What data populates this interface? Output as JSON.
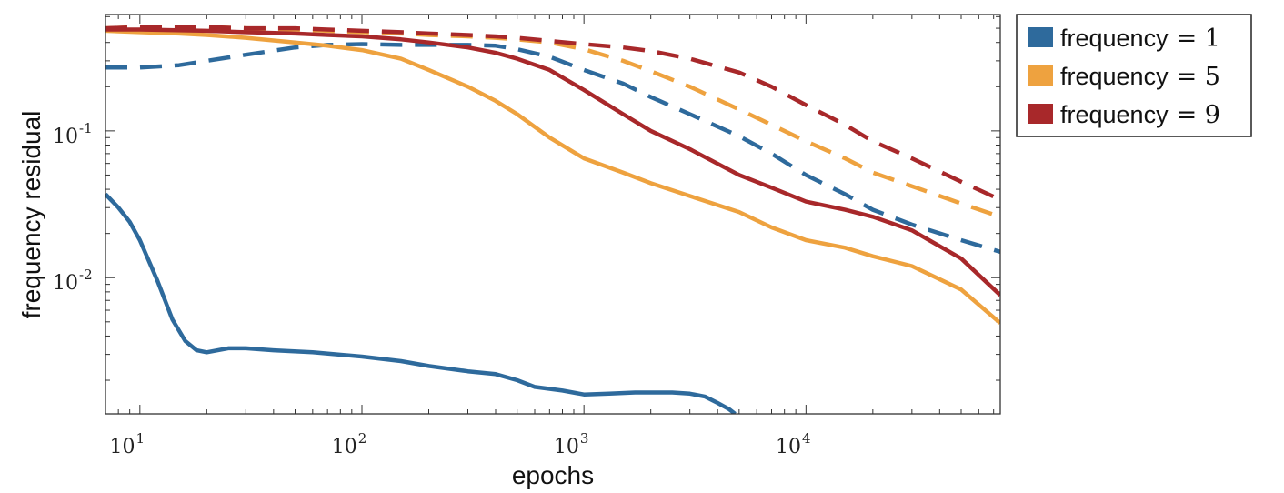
{
  "chart_data": {
    "type": "line",
    "xlabel": "epochs",
    "ylabel": "frequency residual",
    "x_scale": "log",
    "y_scale": "log",
    "xlim": [
      7,
      75000
    ],
    "ylim": [
      0.00118,
      0.62
    ],
    "x_ticks": [
      {
        "value": 10,
        "base": "10",
        "exp": "1"
      },
      {
        "value": 100,
        "base": "10",
        "exp": "2"
      },
      {
        "value": 1000,
        "base": "10",
        "exp": "3"
      },
      {
        "value": 10000,
        "base": "10",
        "exp": "4"
      }
    ],
    "y_ticks": [
      {
        "value": 0.1,
        "base": "10",
        "exp": "-1"
      },
      {
        "value": 0.01,
        "base": "10",
        "exp": "-2"
      }
    ],
    "grid": false,
    "legend_position": "outside-right-top",
    "legend": [
      {
        "label": "frequency",
        "eq": "= 1",
        "color": "#2e6a9c"
      },
      {
        "label": "frequency",
        "eq": "= 5",
        "color": "#eea23f"
      },
      {
        "label": "frequency",
        "eq": "= 9",
        "color": "#a8282a"
      }
    ],
    "series": [
      {
        "legend_index": 0,
        "color": "#2e6a9c",
        "style": "solid",
        "x": [
          7,
          8,
          9,
          10,
          12,
          14,
          16,
          18,
          20,
          25,
          30,
          40,
          60,
          100,
          150,
          200,
          300,
          400,
          500,
          600,
          800,
          1000,
          1300,
          1700,
          2000,
          2500,
          3000,
          3500,
          4000,
          4500,
          4800
        ],
        "y": [
          0.037,
          0.03,
          0.024,
          0.018,
          0.0095,
          0.0052,
          0.0037,
          0.0032,
          0.0031,
          0.0033,
          0.0033,
          0.0032,
          0.0031,
          0.0029,
          0.0027,
          0.0025,
          0.0023,
          0.0022,
          0.002,
          0.0018,
          0.0017,
          0.0016,
          0.00162,
          0.00165,
          0.00165,
          0.00165,
          0.00162,
          0.00155,
          0.0014,
          0.00127,
          0.00118
        ]
      },
      {
        "legend_index": 0,
        "color": "#2e6a9c",
        "style": "dashed",
        "x": [
          7,
          10,
          15,
          20,
          30,
          50,
          70,
          100,
          150,
          200,
          300,
          400,
          500,
          700,
          1000,
          1500,
          2000,
          3000,
          5000,
          7000,
          10000,
          15000,
          20000,
          30000,
          50000,
          75000
        ],
        "y": [
          0.27,
          0.27,
          0.28,
          0.3,
          0.33,
          0.37,
          0.385,
          0.39,
          0.385,
          0.385,
          0.385,
          0.38,
          0.36,
          0.32,
          0.26,
          0.21,
          0.17,
          0.13,
          0.092,
          0.07,
          0.05,
          0.037,
          0.029,
          0.023,
          0.018,
          0.015
        ]
      },
      {
        "legend_index": 1,
        "color": "#eea23f",
        "style": "solid",
        "x": [
          7,
          10,
          15,
          20,
          30,
          50,
          70,
          100,
          150,
          200,
          300,
          400,
          500,
          700,
          1000,
          1500,
          2000,
          3000,
          5000,
          7000,
          10000,
          15000,
          20000,
          30000,
          50000,
          75000
        ],
        "y": [
          0.48,
          0.47,
          0.46,
          0.45,
          0.43,
          0.4,
          0.38,
          0.355,
          0.31,
          0.26,
          0.2,
          0.16,
          0.13,
          0.09,
          0.065,
          0.052,
          0.044,
          0.036,
          0.028,
          0.022,
          0.018,
          0.016,
          0.014,
          0.012,
          0.0083,
          0.0049
        ]
      },
      {
        "legend_index": 1,
        "color": "#eea23f",
        "style": "dashed",
        "x": [
          7,
          10,
          20,
          30,
          50,
          70,
          100,
          150,
          200,
          300,
          400,
          500,
          700,
          1000,
          1500,
          2000,
          3000,
          5000,
          7000,
          10000,
          15000,
          20000,
          30000,
          50000,
          75000
        ],
        "y": [
          0.5,
          0.51,
          0.51,
          0.5,
          0.49,
          0.48,
          0.47,
          0.46,
          0.45,
          0.44,
          0.43,
          0.42,
          0.4,
          0.36,
          0.3,
          0.255,
          0.2,
          0.14,
          0.11,
          0.085,
          0.065,
          0.052,
          0.042,
          0.032,
          0.026
        ]
      },
      {
        "legend_index": 2,
        "color": "#a8282a",
        "style": "solid",
        "x": [
          7,
          10,
          20,
          30,
          50,
          70,
          100,
          150,
          200,
          300,
          400,
          500,
          700,
          1000,
          1500,
          2000,
          3000,
          5000,
          7000,
          10000,
          15000,
          20000,
          30000,
          50000,
          75000
        ],
        "y": [
          0.49,
          0.49,
          0.48,
          0.47,
          0.46,
          0.45,
          0.44,
          0.42,
          0.4,
          0.37,
          0.34,
          0.31,
          0.26,
          0.19,
          0.13,
          0.1,
          0.075,
          0.05,
          0.041,
          0.033,
          0.029,
          0.026,
          0.021,
          0.0135,
          0.0076
        ]
      },
      {
        "legend_index": 2,
        "color": "#a8282a",
        "style": "dashed",
        "x": [
          7,
          10,
          20,
          30,
          50,
          70,
          100,
          150,
          200,
          300,
          400,
          500,
          700,
          1000,
          1500,
          2000,
          3000,
          5000,
          7000,
          10000,
          15000,
          20000,
          30000,
          50000,
          75000
        ],
        "y": [
          0.5,
          0.51,
          0.51,
          0.5,
          0.5,
          0.49,
          0.48,
          0.47,
          0.46,
          0.45,
          0.44,
          0.43,
          0.41,
          0.39,
          0.37,
          0.35,
          0.31,
          0.25,
          0.2,
          0.15,
          0.11,
          0.085,
          0.065,
          0.045,
          0.034
        ]
      }
    ]
  }
}
